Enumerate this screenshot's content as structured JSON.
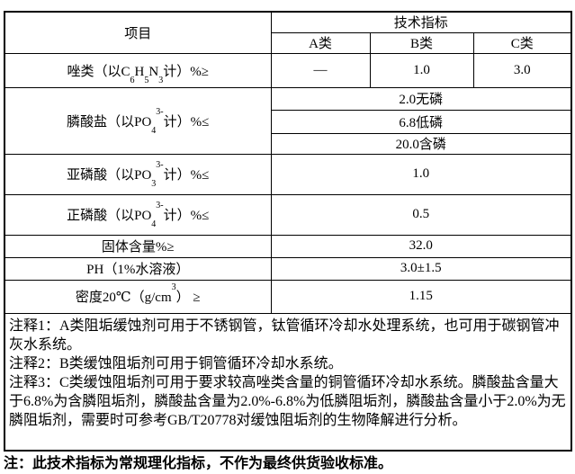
{
  "page": {
    "footer_note": "注：此技术指标为常规理化指标，不作为最终供货验收标准。"
  },
  "colors": {
    "border": "#000000",
    "text": "#000000",
    "background": "#ffffff"
  },
  "table": {
    "header": {
      "item": "项目",
      "group": "技术指标",
      "columns": [
        "A类",
        "B类",
        "C类"
      ]
    },
    "rows": [
      {
        "id": "azoles",
        "label": [
          {
            "t": "唑类（以C"
          },
          {
            "sub": "6"
          },
          {
            "t": "H"
          },
          {
            "sub": "5"
          },
          {
            "t": "N"
          },
          {
            "sub": "3"
          },
          {
            "t": "计）%≥"
          }
        ],
        "values": [
          "—",
          "1.0",
          "3.0"
        ]
      },
      {
        "id": "phosphonate",
        "label": [
          {
            "t": "膦酸盐（以PO"
          },
          {
            "sub": "4"
          },
          {
            "sup": "3-"
          },
          {
            "t": "计）%≤"
          }
        ],
        "span_values": [
          "2.0无磷",
          "6.8低磷",
          "20.0含磷"
        ]
      },
      {
        "id": "phosphorous-acid",
        "label": [
          {
            "t": "亚磷酸（以PO"
          },
          {
            "sub": "3"
          },
          {
            "sup": "3-"
          },
          {
            "t": "计）%≤"
          }
        ],
        "value": "1.0"
      },
      {
        "id": "orthophosphoric-acid",
        "label": [
          {
            "t": "正磷酸（以PO"
          },
          {
            "sub": "4"
          },
          {
            "sup": "3-"
          },
          {
            "t": "计）%≤"
          }
        ],
        "value": "0.5"
      },
      {
        "id": "solid-content",
        "label": [
          {
            "t": "固体含量%≥"
          }
        ],
        "value": "32.0"
      },
      {
        "id": "ph",
        "label": [
          {
            "t": "PH（1%水溶液）"
          }
        ],
        "value": "3.0±1.5"
      },
      {
        "id": "density",
        "label": [
          {
            "t": "密度20℃（g/cm"
          },
          {
            "sup": "3"
          },
          {
            "t": "） ≥"
          }
        ],
        "value": "1.15"
      }
    ],
    "notes": [
      "注释1：A类阻垢缓蚀剂可用于不锈钢管，钛管循环冷却水处理系统，也可用于碳钢管冲灰水系统。",
      "注释2：B类缓蚀阻垢剂可用于铜管循环冷却水系统。",
      "注释3：C类缓蚀阻垢剂可用于要求较高唑类含量的铜管循环冷却水系统。膦酸盐含量大于6.8%为含膦阻垢剂，膦酸盐含量为2.0%-6.8%为低膦阻垢剂，膦酸盐含量小于2.0%为无膦阻垢剂，需要时可参考GB/T20778对缓蚀阻垢剂的生物降解进行分析。"
    ]
  }
}
